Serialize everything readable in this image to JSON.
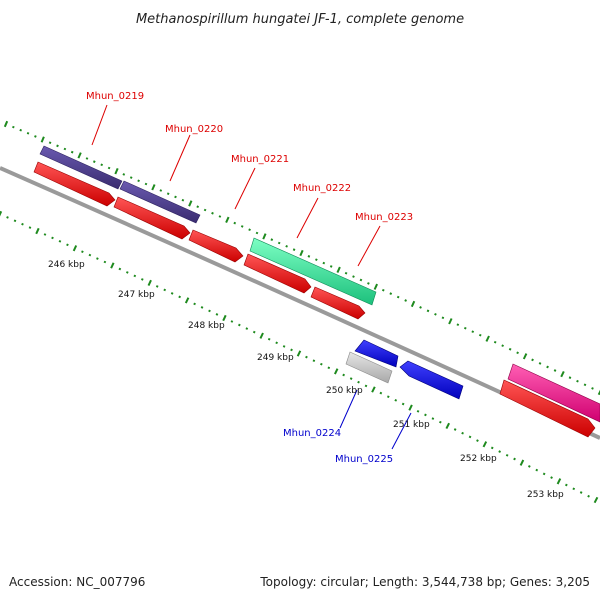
{
  "title": "Methanospirillum hungatei JF-1, complete genome",
  "footer": {
    "accession": "Accession: NC_007796",
    "summary": "Topology: circular; Length: 3,544,738 bp; Genes: 3,205"
  },
  "colors": {
    "backbone": "#808080",
    "ticks": "#1e8a1e",
    "forward_label": "#dd0000",
    "reverse_label": "#0000cc",
    "cds": "#ff0000",
    "cds_rev": "#0000ee",
    "gene_indigo": "#4b3a8c",
    "gene_teal": "#2ee89a",
    "gene_grey": "#c4c4c4",
    "gene_magenta": "#ff1493"
  },
  "scale": {
    "ticks": [
      {
        "label": "246 kbp"
      },
      {
        "label": "247 kbp"
      },
      {
        "label": "248 kbp"
      },
      {
        "label": "249 kbp"
      },
      {
        "label": "250 kbp"
      },
      {
        "label": "251 kbp"
      },
      {
        "label": "252 kbp"
      },
      {
        "label": "253 kbp"
      }
    ]
  },
  "gene_labels": [
    {
      "text": "Mhun_0219",
      "strand": "forward"
    },
    {
      "text": "Mhun_0220",
      "strand": "forward"
    },
    {
      "text": "Mhun_0221",
      "strand": "forward"
    },
    {
      "text": "Mhun_0222",
      "strand": "forward"
    },
    {
      "text": "Mhun_0223",
      "strand": "forward"
    },
    {
      "text": "Mhun_0224",
      "strand": "reverse"
    },
    {
      "text": "Mhun_0225",
      "strand": "reverse"
    }
  ]
}
